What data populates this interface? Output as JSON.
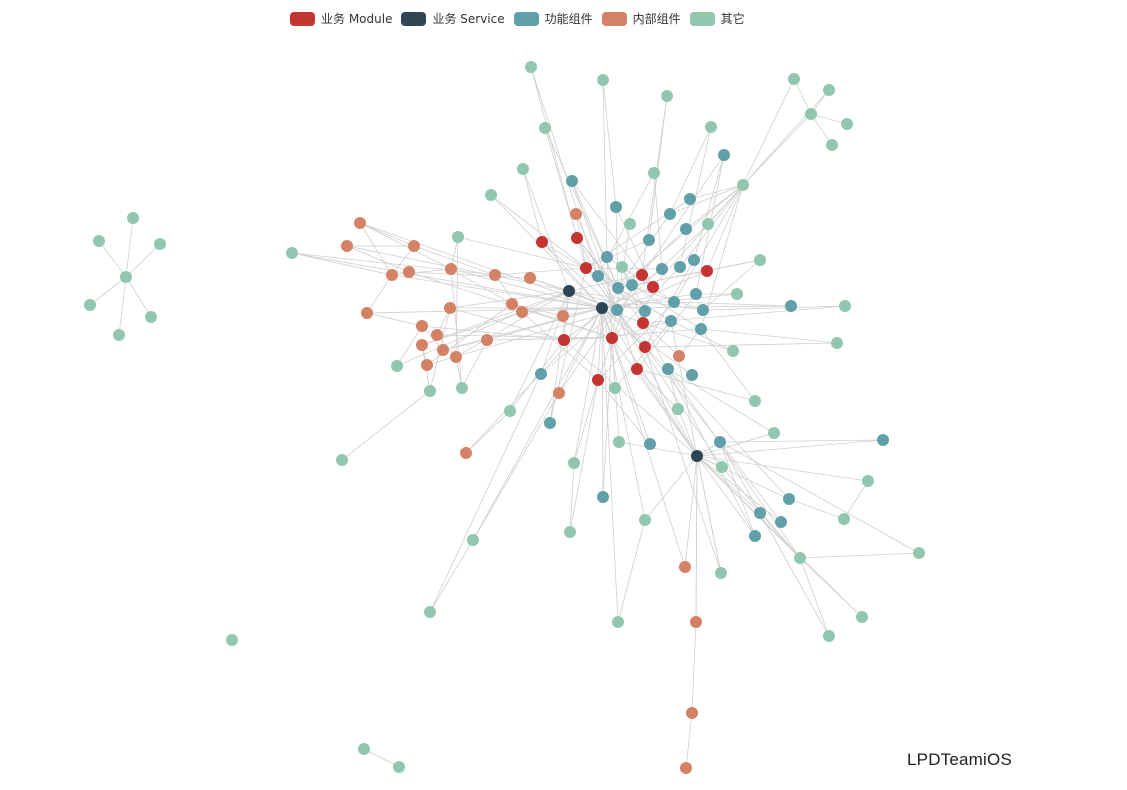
{
  "legend": {
    "module": "业务 Module",
    "service": "业务 Service",
    "functional": "功能组件",
    "internal": "内部组件",
    "other": "其它"
  },
  "colors": {
    "module": "#c23531",
    "service": "#2f4554",
    "functional": "#61a0a8",
    "internal": "#d48265",
    "other": "#91c7ae",
    "edge": "#cfcfcf"
  },
  "watermark": "LPDTeamiOS"
}
